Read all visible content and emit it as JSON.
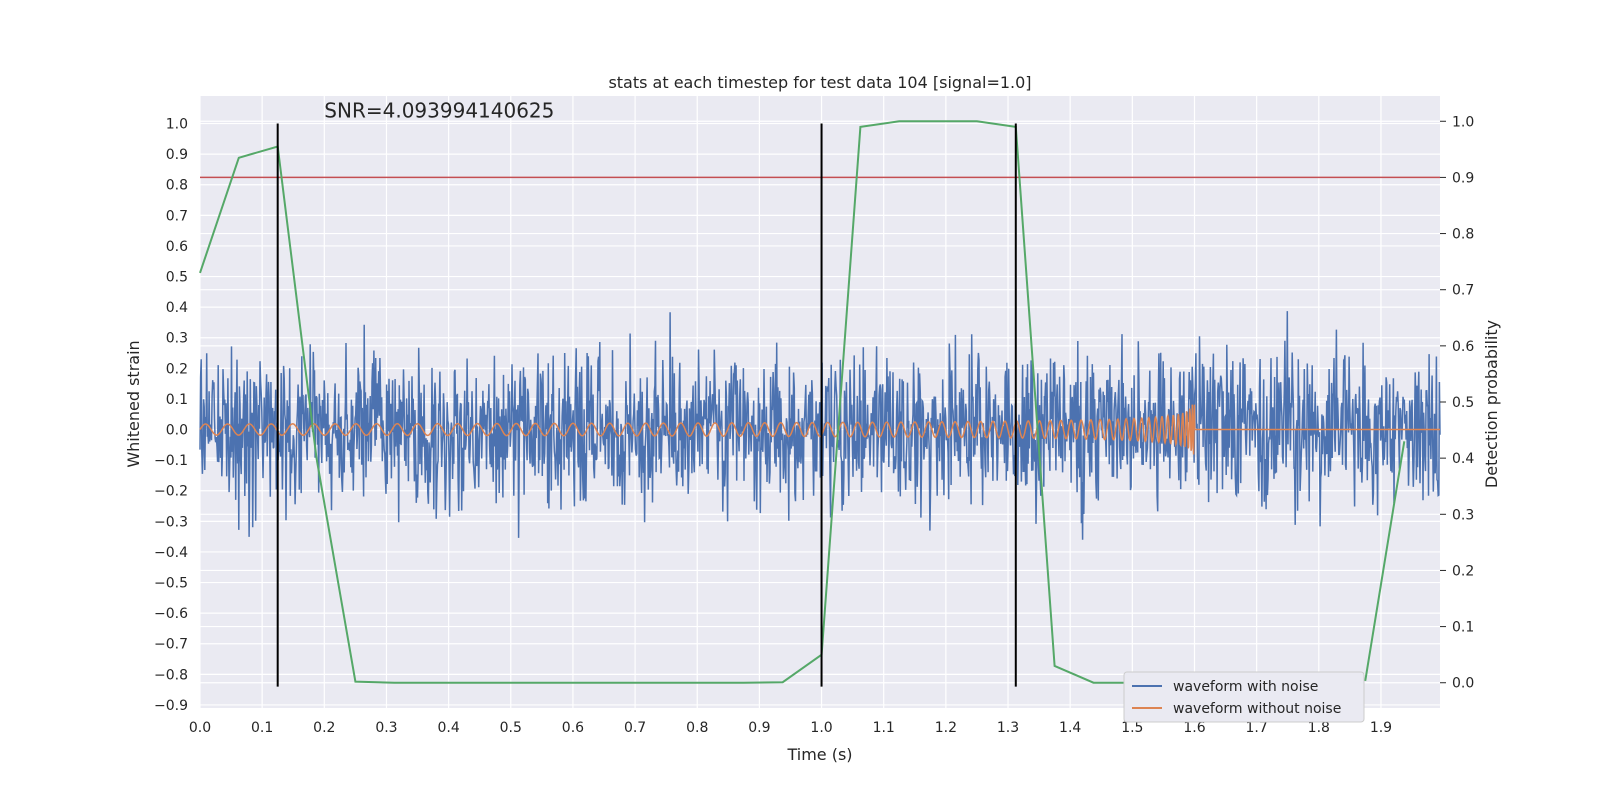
{
  "chart_data": {
    "type": "line",
    "title": "stats at each timestep for test data 104 [signal=1.0]",
    "xlabel": "Time (s)",
    "ylabel": "Whitened strain",
    "ylabel_right": "Detection probability",
    "xlim": [
      0.0,
      1.995
    ],
    "ylim": [
      -0.91,
      1.09
    ],
    "ylim_right": [
      -0.045,
      1.045
    ],
    "x_ticks": [
      0.0,
      0.1,
      0.2,
      0.3,
      0.4,
      0.5,
      0.6,
      0.7,
      0.8,
      0.9,
      1.0,
      1.1,
      1.2,
      1.3,
      1.4,
      1.5,
      1.6,
      1.7,
      1.8,
      1.9
    ],
    "y_ticks": [
      1.0,
      0.9,
      0.8,
      0.7,
      0.6,
      0.5,
      0.4,
      0.3,
      0.2,
      0.1,
      0.0,
      -0.1,
      -0.2,
      -0.3,
      -0.4,
      -0.5,
      -0.6,
      -0.7,
      -0.8,
      -0.9
    ],
    "y_ticks_right": [
      1.0,
      0.9,
      0.8,
      0.7,
      0.6,
      0.5,
      0.4,
      0.3,
      0.2,
      0.1,
      0.0
    ],
    "grid": true,
    "legend_position": "lower-right",
    "annotation": "SNR=4.093994140625",
    "annotation_x": 0.2,
    "annotation_y": 1.02,
    "threshold_probability": 0.9,
    "vlines_x": [
      0.125,
      1.0,
      1.3125
    ],
    "vlines_y_range": [
      -0.84,
      1.0
    ],
    "series": [
      {
        "name": "waveform with noise",
        "color": "#4c72b0",
        "axis": "left",
        "kind": "noise"
      },
      {
        "name": "waveform without noise",
        "color": "#dd8452",
        "axis": "left",
        "kind": "chirp"
      },
      {
        "color": "#55a868",
        "axis": "right",
        "x": [
          0.0,
          0.0625,
          0.125,
          0.1875,
          0.25,
          0.3125,
          0.375,
          0.4375,
          0.5,
          0.5625,
          0.625,
          0.6875,
          0.75,
          0.8125,
          0.875,
          0.9375,
          1.0,
          1.0625,
          1.125,
          1.1875,
          1.25,
          1.3125,
          1.375,
          1.4375,
          1.5,
          1.5625,
          1.625,
          1.6875,
          1.75,
          1.8125,
          1.875,
          1.9375
        ],
        "values": [
          0.73,
          0.935,
          0.955,
          0.4,
          0.002,
          0.0,
          0.0,
          0.0,
          0.0,
          0.0,
          0.0,
          0.0,
          0.0,
          0.0,
          0.0,
          0.001,
          0.05,
          0.99,
          1.0,
          1.0,
          1.0,
          0.99,
          0.03,
          0.0,
          0.0,
          0.0,
          0.0,
          0.0,
          0.0,
          0.0,
          0.005,
          0.43
        ]
      }
    ],
    "colors": {
      "vline": "#000000",
      "threshold": "#c44e52",
      "background": "#eaeaf2",
      "grid": "#ffffff"
    }
  }
}
